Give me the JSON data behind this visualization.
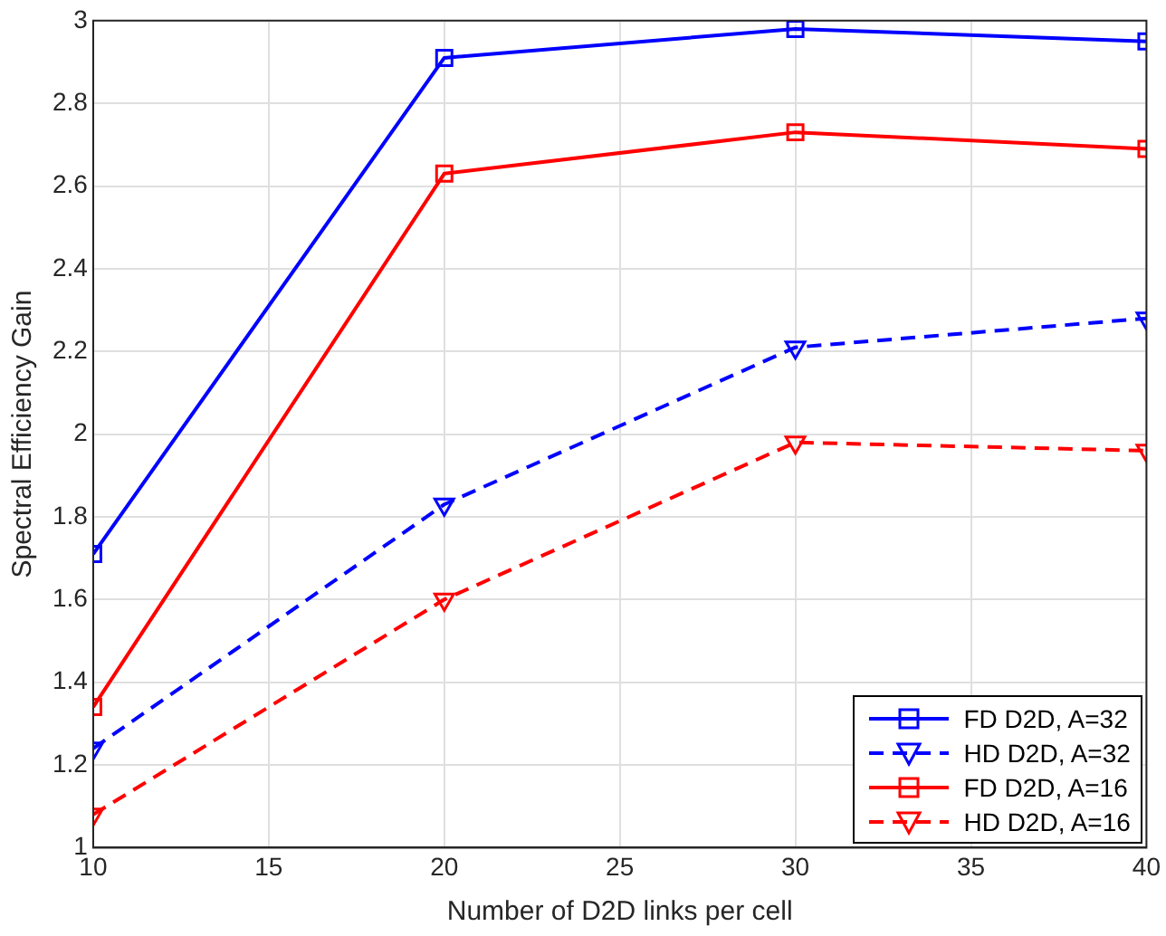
{
  "chart_data": {
    "type": "line",
    "xlabel": "Number of D2D links per cell",
    "ylabel": "Spectral Efficiency Gain",
    "x": [
      10,
      20,
      30,
      40
    ],
    "series": [
      {
        "name": "FD D2D, A=32",
        "color": "#0000ff",
        "values": [
          1.71,
          2.91,
          2.98,
          2.95
        ],
        "marker": "square",
        "line_style": "solid"
      },
      {
        "name": "HD D2D, A=32",
        "color": "#0000ff",
        "values": [
          1.24,
          1.83,
          2.21,
          2.28
        ],
        "marker": "triangle",
        "line_style": "dashed"
      },
      {
        "name": "FD D2D, A=16",
        "color": "#ff0000",
        "values": [
          1.34,
          2.63,
          2.73,
          2.69
        ],
        "marker": "square",
        "line_style": "solid"
      },
      {
        "name": "HD D2D, A=16",
        "color": "#ff0000",
        "values": [
          1.08,
          1.6,
          1.98,
          1.96
        ],
        "marker": "triangle",
        "line_style": "dashed"
      }
    ],
    "xlim": [
      10,
      40
    ],
    "xticks": [
      10,
      15,
      20,
      25,
      30,
      35,
      40
    ],
    "ylim": [
      1,
      3
    ],
    "yticks": [
      1,
      1.2,
      1.4,
      1.6,
      1.8,
      2,
      2.2,
      2.4,
      2.6,
      2.8,
      3
    ],
    "grid": true,
    "legend": "bottom right"
  }
}
